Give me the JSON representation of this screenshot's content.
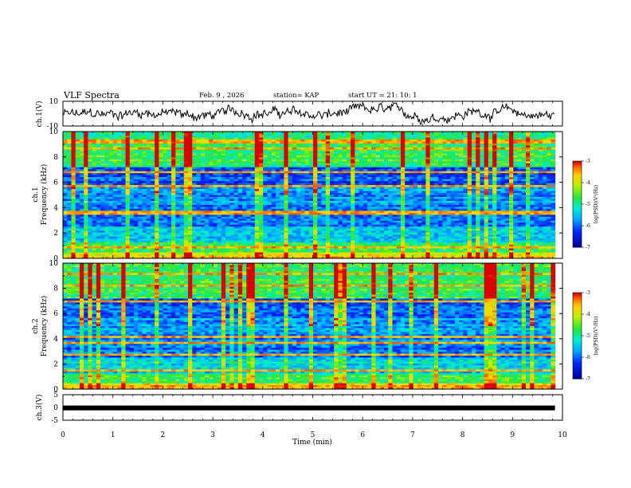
{
  "header": {
    "title": "VLF Spectra",
    "date": "Feb. 9 , 2026",
    "station": "station= KAP",
    "start": "start UT = 21: 10: 1"
  },
  "chart_data": [
    {
      "id": "ch1-waveform",
      "type": "line",
      "ylabel": "ch.1(V)",
      "ylim": [
        -10,
        10
      ],
      "ytick_labels": [
        "10",
        "-10"
      ],
      "xlim": [
        0,
        9.85
      ]
    },
    {
      "id": "ch1-spectrogram",
      "type": "heatmap",
      "ylabel": "ch.1",
      "ylabel2": "Frequency (kHz)",
      "ylim": [
        0,
        10
      ],
      "ytick_labels": [
        "0",
        "2",
        "4",
        "6",
        "8",
        "10"
      ],
      "xlim": [
        0,
        9.85
      ],
      "colorbar": {
        "label": "log(PSD)(V²/Hz)",
        "range": [
          -7,
          -3
        ],
        "tick_labels": [
          "-3",
          "-4",
          "-5",
          "-6",
          "-7"
        ]
      }
    },
    {
      "id": "ch2-spectrogram",
      "type": "heatmap",
      "ylabel": "ch.2",
      "ylabel2": "Frequency (kHz)",
      "ylim": [
        0,
        10
      ],
      "ytick_labels": [
        "0",
        "2",
        "4",
        "6",
        "8",
        "10"
      ],
      "xlim": [
        0,
        9.85
      ],
      "colorbar": {
        "label": "log(PSD)(V²/Hz)",
        "range": [
          -7,
          -3
        ],
        "tick_labels": [
          "-3",
          "-4",
          "-5",
          "-6",
          "-7"
        ]
      }
    },
    {
      "id": "ch3-waveform",
      "type": "line",
      "ylabel": "ch.3(V)",
      "ylim": [
        -5,
        5
      ],
      "ytick_labels": [
        "5",
        "0",
        "-5"
      ],
      "xlim": [
        0,
        9.85
      ],
      "xlabel": "Time (min)",
      "xtick_labels": [
        "0",
        "1",
        "2",
        "3",
        "4",
        "5",
        "6",
        "7",
        "8",
        "9",
        "10"
      ],
      "constant_level": -0.2
    }
  ],
  "colors": {
    "axes": "#000000",
    "trace": "#000000",
    "background": "#ffffff"
  }
}
